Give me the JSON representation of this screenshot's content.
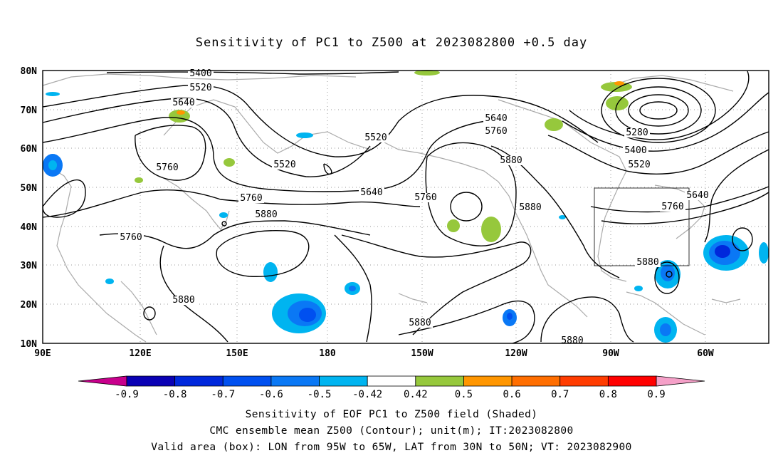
{
  "title": "Sensitivity of PC1 to Z500 at 2023082800 +0.5 day",
  "lat_labels": [
    "80N",
    "70N",
    "60N",
    "50N",
    "40N",
    "30N",
    "20N",
    "10N"
  ],
  "lon_labels": [
    "90E",
    "120E",
    "150E",
    "180",
    "150W",
    "120W",
    "90W",
    "60W"
  ],
  "contour_labels": [
    {
      "text": "5400"
    },
    {
      "text": "5520"
    },
    {
      "text": "5640"
    },
    {
      "text": "5760"
    },
    {
      "text": "5760"
    },
    {
      "text": "5880"
    },
    {
      "text": "5520"
    },
    {
      "text": "5520"
    },
    {
      "text": "5640"
    },
    {
      "text": "5760"
    },
    {
      "text": "5640"
    },
    {
      "text": "5760"
    },
    {
      "text": "5880"
    },
    {
      "text": "5280"
    },
    {
      "text": "5400"
    },
    {
      "text": "5520"
    },
    {
      "text": "5640"
    },
    {
      "text": "5760"
    },
    {
      "text": "5880"
    },
    {
      "text": "5880"
    },
    {
      "text": "5880"
    },
    {
      "text": "5880"
    },
    {
      "text": "5880"
    },
    {
      "text": "5760"
    }
  ],
  "colorbar": {
    "labels": [
      "-0.9",
      "-0.8",
      "-0.7",
      "-0.6",
      "-0.5",
      "-0.42",
      "0.42",
      "0.5",
      "0.6",
      "0.7",
      "0.8",
      "0.9"
    ],
    "colors": [
      "#0a00b4",
      "#0028dc",
      "#0050f0",
      "#0a78f5",
      "#00b4f0",
      "#ffffff",
      "#96c83c",
      "#ff9600",
      "#ff6e00",
      "#ff3c00",
      "#ff0000"
    ],
    "low_color": "#c8008c",
    "high_color": "#f5a0c8"
  },
  "footer": {
    "line1": "Sensitivity of EOF PC1 to Z500 field (Shaded)",
    "line2": "CMC ensemble mean Z500 (Contour); unit(m); IT:2023082800",
    "line3": "Valid area (box): LON from 95W to 65W, LAT from 30N to 50N; VT: 2023082900"
  }
}
